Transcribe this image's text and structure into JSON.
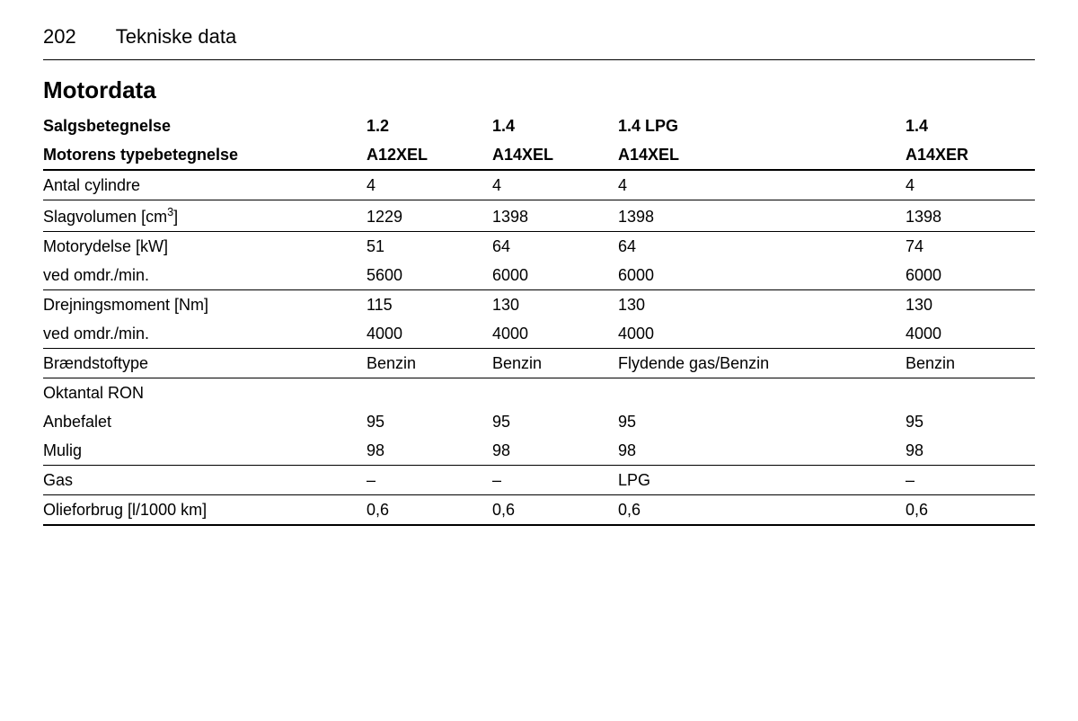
{
  "page": {
    "number": "202",
    "section": "Tekniske data",
    "table_title": "Motordata"
  },
  "headers": {
    "label1": "Salgsbetegnelse",
    "label2": "Motorens typebetegnelse",
    "sales": [
      "1.2",
      "1.4",
      "1.4 LPG",
      "1.4"
    ],
    "engine": [
      "A12XEL",
      "A14XEL",
      "A14XEL",
      "A14XER"
    ]
  },
  "rows": {
    "cylinders": {
      "label": "Antal cylindre",
      "v": [
        "4",
        "4",
        "4",
        "4"
      ]
    },
    "displacement": {
      "label_pre": "Slagvolumen [cm",
      "label_sup": "3",
      "label_post": "]",
      "v": [
        "1229",
        "1398",
        "1398",
        "1398"
      ]
    },
    "power": {
      "label": "Motorydelse [kW]",
      "v": [
        "51",
        "64",
        "64",
        "74"
      ]
    },
    "power_rpm": {
      "label": "ved omdr./min.",
      "v": [
        "5600",
        "6000",
        "6000",
        "6000"
      ]
    },
    "torque": {
      "label": "Drejningsmoment [Nm]",
      "v": [
        "115",
        "130",
        "130",
        "130"
      ]
    },
    "torque_rpm": {
      "label": "ved omdr./min.",
      "v": [
        "4000",
        "4000",
        "4000",
        "4000"
      ]
    },
    "fuel": {
      "label": "Brændstoftype",
      "v": [
        "Benzin",
        "Benzin",
        "Flydende gas/Benzin",
        "Benzin"
      ]
    },
    "octane_header": {
      "label": "Oktantal RON"
    },
    "octane_rec": {
      "label": "Anbefalet",
      "v": [
        "95",
        "95",
        "95",
        "95"
      ]
    },
    "octane_pos": {
      "label": "Mulig",
      "v": [
        "98",
        "98",
        "98",
        "98"
      ]
    },
    "gas": {
      "label": "Gas",
      "v": [
        "–",
        "–",
        "LPG",
        "–"
      ]
    },
    "oil": {
      "label": "Olieforbrug [l/1000 km]",
      "v": [
        "0,6",
        "0,6",
        "0,6",
        "0,6"
      ]
    }
  }
}
